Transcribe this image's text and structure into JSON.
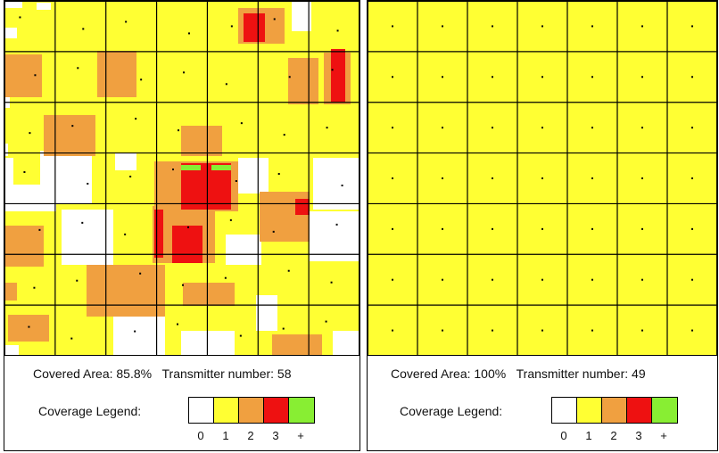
{
  "panels": [
    {
      "id": "left",
      "covered_area_label": "Covered Area:",
      "covered_area_value": "85.8%",
      "transmitter_label": "Transmitter number:",
      "transmitter_value": "58",
      "legend_title": "Coverage Legend:"
    },
    {
      "id": "right",
      "covered_area_label": "Covered Area:",
      "covered_area_value": "100%",
      "transmitter_label": "Transmitter number:",
      "transmitter_value": "49",
      "legend_title": "Coverage Legend:"
    }
  ],
  "legend": [
    {
      "label": "0",
      "color": "#ffffff"
    },
    {
      "label": "1",
      "color": "#ffff33"
    },
    {
      "label": "2",
      "color": "#f0a040"
    },
    {
      "label": "3",
      "color": "#ee1111"
    },
    {
      "label": "+",
      "color": "#88ee33"
    }
  ],
  "grid": {
    "cols": 7,
    "rows": 7
  },
  "colors": {
    "coverage_1": "#ffff33",
    "coverage_2": "#f0a040",
    "coverage_3": "#ee1111",
    "coverage_plus": "#88ee33",
    "uncovered": "#ffffff",
    "grid_line": "#000000",
    "transmitter_dot": "#000000"
  }
}
